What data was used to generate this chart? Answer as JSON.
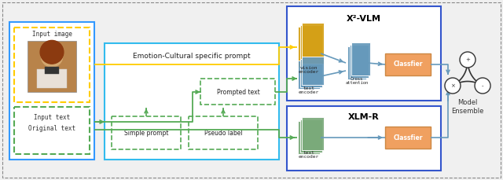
{
  "bg_color": "#f0f0f0",
  "outer_border_color": "#bbbbbb",
  "label_input_image": "Input image",
  "label_input_text": "Input text",
  "label_original_text": "Original text",
  "label_emotion": "Emotion-Cultural specific prompt",
  "label_simple": "Simple prompt",
  "label_pseudo": "Pseudo label",
  "label_prompted": "Prompted text",
  "label_x2vlm": "X²-VLM",
  "label_xlmr": "XLM-R",
  "label_vision": "vision\nencoder",
  "label_text_enc1": "text\nencoder",
  "label_text_enc2": "text\nencoder",
  "label_cross": "Cross\nattention",
  "label_classifier1": "Classfier",
  "label_classifier2": "Classfier",
  "label_model": "Model\nEnsemble",
  "col_blue": "#3399ff",
  "col_cyan": "#33bbee",
  "col_yellow": "#ffcc00",
  "col_green": "#55aa55",
  "col_darkblue": "#3355cc",
  "col_orange_face": "#f0a060",
  "col_orange_edge": "#cc8844",
  "col_gold": "#d4a017",
  "col_steel": "#6699bb",
  "col_sage": "#7aaa7a",
  "col_gray": "#888888"
}
